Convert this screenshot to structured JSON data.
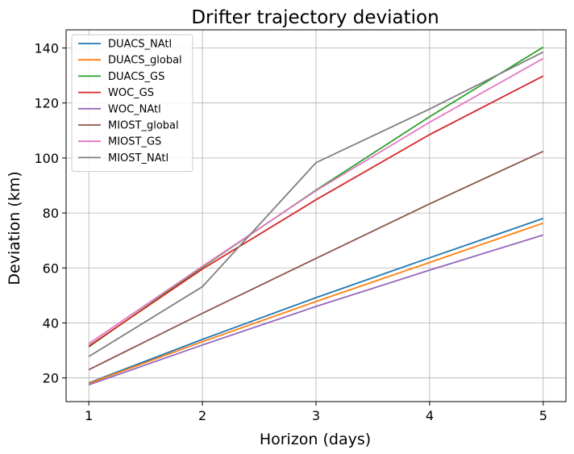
{
  "chart_data": {
    "type": "line",
    "title": "Drifter trajectory deviation",
    "xlabel": "Horizon (days)",
    "ylabel": "Deviation (km)",
    "x": [
      1,
      2,
      3,
      4,
      5
    ],
    "xlim": [
      0.8,
      5.2
    ],
    "ylim": [
      11.4,
      146.6
    ],
    "xticks": [
      1,
      2,
      3,
      4,
      5
    ],
    "yticks": [
      20,
      40,
      60,
      80,
      100,
      120,
      140
    ],
    "grid": true,
    "legend_position": "top-left",
    "series": [
      {
        "name": "DUACS_NAtl",
        "color": "#1f77b4",
        "values": [
          18.2,
          34.0,
          49.2,
          63.7,
          78.0
        ]
      },
      {
        "name": "DUACS_global",
        "color": "#ff7f0e",
        "values": [
          18.0,
          33.2,
          47.8,
          62.0,
          76.3
        ]
      },
      {
        "name": "DUACS_GS",
        "color": "#2ca02c",
        "values": [
          31.3,
          60.3,
          88.3,
          115.0,
          140.3
        ]
      },
      {
        "name": "WOC_GS",
        "color": "#d62728",
        "values": [
          31.6,
          59.6,
          84.8,
          108.5,
          129.8
        ]
      },
      {
        "name": "WOC_NAtl",
        "color": "#9467bd",
        "values": [
          17.5,
          32.0,
          46.0,
          59.2,
          72.0
        ]
      },
      {
        "name": "MIOST_global",
        "color": "#8c564b",
        "values": [
          23.0,
          43.5,
          63.5,
          83.3,
          102.4
        ]
      },
      {
        "name": "MIOST_GS",
        "color": "#e377c2",
        "values": [
          32.5,
          60.6,
          88.1,
          113.0,
          136.2
        ]
      },
      {
        "name": "MIOST_NAtl",
        "color": "#7f7f7f",
        "values": [
          27.8,
          53.2,
          98.3,
          117.8,
          138.5
        ]
      }
    ]
  }
}
